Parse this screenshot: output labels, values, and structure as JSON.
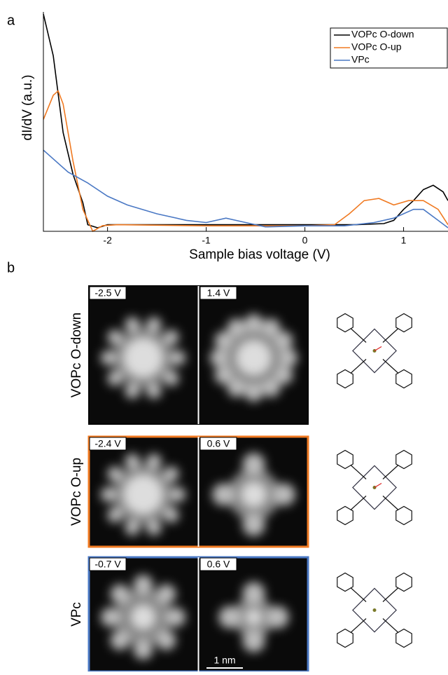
{
  "panel_labels": [
    "a",
    "b"
  ],
  "chart_data": {
    "type": "line",
    "xlabel": "Sample bias voltage (V)",
    "ylabel": "dI/dV (a.u.)",
    "xlim": [
      -2.65,
      1.45
    ],
    "ylim": [
      0,
      1
    ],
    "xticks": [
      -2,
      -1,
      0,
      1
    ],
    "legend": "upper right",
    "series": [
      {
        "name": "VOPc O-down",
        "color": "#000000",
        "x": [
          -2.65,
          -2.55,
          -2.45,
          -2.35,
          -2.25,
          -2.2,
          -2.1,
          -2.0,
          -1.5,
          -1.0,
          -0.5,
          0,
          0.5,
          0.8,
          0.9,
          1.0,
          1.1,
          1.2,
          1.3,
          1.4,
          1.45
        ],
        "values": [
          0.99,
          0.8,
          0.45,
          0.26,
          0.13,
          0.03,
          0.016,
          0.03,
          0.03,
          0.03,
          0.03,
          0.03,
          0.03,
          0.035,
          0.05,
          0.1,
          0.14,
          0.19,
          0.21,
          0.18,
          0.14
        ]
      },
      {
        "name": "VOPc O-up",
        "color": "#f07a22",
        "x": [
          -2.65,
          -2.55,
          -2.5,
          -2.45,
          -2.35,
          -2.25,
          -2.15,
          -2.05,
          -1.9,
          -1.0,
          0,
          0.3,
          0.45,
          0.6,
          0.75,
          0.9,
          1.05,
          1.2,
          1.35,
          1.45
        ],
        "values": [
          0.51,
          0.62,
          0.64,
          0.58,
          0.32,
          0.1,
          0.0,
          0.026,
          0.03,
          0.025,
          0.025,
          0.03,
          0.08,
          0.14,
          0.15,
          0.12,
          0.14,
          0.14,
          0.1,
          0.03
        ]
      },
      {
        "name": "VPc",
        "color": "#4a78c4",
        "x": [
          -2.65,
          -2.4,
          -2.2,
          -2.0,
          -1.8,
          -1.5,
          -1.2,
          -1.0,
          -0.8,
          -0.6,
          -0.4,
          0,
          0.4,
          0.7,
          0.9,
          1.1,
          1.2,
          1.35,
          1.45
        ],
        "values": [
          0.37,
          0.27,
          0.22,
          0.16,
          0.12,
          0.08,
          0.05,
          0.04,
          0.06,
          0.04,
          0.02,
          0.025,
          0.025,
          0.04,
          0.06,
          0.1,
          0.1,
          0.05,
          0.016
        ]
      }
    ]
  },
  "stm": {
    "rows": [
      {
        "label": "VOPc O-down",
        "border": "#000000",
        "images": [
          "-2.5 V",
          "1.4 V"
        ]
      },
      {
        "label": "VOPc O-up",
        "border": "#f07a22",
        "images": [
          "-2.4 V",
          "0.6 V"
        ]
      },
      {
        "label": "VPc",
        "border": "#4a78c4",
        "images": [
          "-0.7 V",
          "0.6 V"
        ]
      }
    ],
    "scale_bar": "1 nm"
  }
}
